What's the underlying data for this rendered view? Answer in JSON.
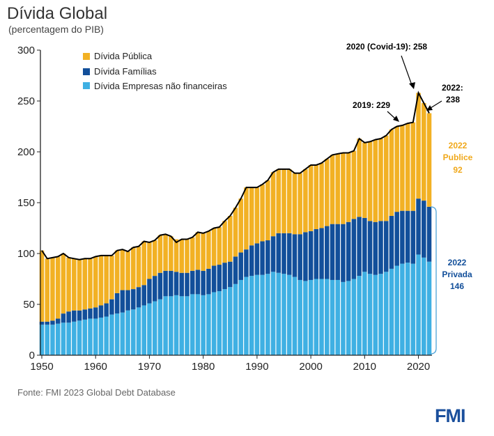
{
  "header": {
    "title": "Dívida Global",
    "subtitle": "(percentagem do PIB)"
  },
  "footer": {
    "source": "Fonte: FMI 2023 Global Debt Database",
    "logo_text": "FMI"
  },
  "colors": {
    "publica": "#f2b124",
    "familias": "#124f9a",
    "empresas": "#3fb0e3",
    "line": "#000000",
    "label_publica": "#f0a81a",
    "label_privada": "#124f9a"
  },
  "chart_data": {
    "type": "bar",
    "stacked": true,
    "x": [
      1950,
      1951,
      1952,
      1953,
      1954,
      1955,
      1956,
      1957,
      1958,
      1959,
      1960,
      1961,
      1962,
      1963,
      1964,
      1965,
      1966,
      1967,
      1968,
      1969,
      1970,
      1971,
      1972,
      1973,
      1974,
      1975,
      1976,
      1977,
      1978,
      1979,
      1980,
      1981,
      1982,
      1983,
      1984,
      1985,
      1986,
      1987,
      1988,
      1989,
      1990,
      1991,
      1992,
      1993,
      1994,
      1995,
      1996,
      1997,
      1998,
      1999,
      2000,
      2001,
      2002,
      2003,
      2004,
      2005,
      2006,
      2007,
      2008,
      2009,
      2010,
      2011,
      2012,
      2013,
      2014,
      2015,
      2016,
      2017,
      2018,
      2019,
      2020,
      2021,
      2022
    ],
    "series": [
      {
        "name": "Dívida Empresas não financeiras",
        "key": "empresas",
        "values": [
          30,
          30,
          30,
          31,
          32,
          32,
          33,
          34,
          35,
          36,
          36,
          37,
          38,
          40,
          41,
          42,
          44,
          45,
          47,
          49,
          51,
          53,
          55,
          58,
          58,
          59,
          58,
          58,
          60,
          60,
          59,
          60,
          62,
          63,
          65,
          67,
          70,
          74,
          77,
          78,
          79,
          79,
          80,
          82,
          81,
          80,
          79,
          77,
          74,
          73,
          74,
          75,
          75,
          75,
          74,
          74,
          72,
          73,
          75,
          78,
          82,
          80,
          79,
          80,
          82,
          85,
          88,
          90,
          91,
          90,
          99,
          96,
          92
        ]
      },
      {
        "name": "Dívida Famílias",
        "key": "familias",
        "values": [
          3,
          3,
          4,
          5,
          9,
          11,
          11,
          10,
          10,
          10,
          11,
          12,
          13,
          15,
          20,
          22,
          20,
          20,
          20,
          20,
          24,
          25,
          26,
          25,
          25,
          23,
          23,
          23,
          23,
          24,
          24,
          25,
          26,
          26,
          26,
          25,
          27,
          27,
          27,
          30,
          31,
          33,
          33,
          35,
          39,
          40,
          41,
          42,
          45,
          48,
          48,
          49,
          50,
          52,
          55,
          55,
          57,
          58,
          59,
          58,
          53,
          52,
          52,
          52,
          50,
          52,
          53,
          52,
          51,
          52,
          55,
          56,
          54
        ]
      },
      {
        "name": "Dívida Pública",
        "key": "publica",
        "values": [
          70,
          62,
          62,
          61,
          59,
          53,
          51,
          50,
          50,
          49,
          50,
          49,
          47,
          43,
          42,
          40,
          38,
          41,
          40,
          43,
          36,
          35,
          37,
          36,
          34,
          32,
          33,
          33,
          33,
          37,
          37,
          37,
          37,
          37,
          41,
          45,
          48,
          53,
          61,
          57,
          55,
          56,
          59,
          63,
          63,
          63,
          63,
          60,
          60,
          62,
          65,
          63,
          64,
          66,
          68,
          69,
          70,
          68,
          67,
          77,
          74,
          78,
          81,
          81,
          84,
          85,
          84,
          84,
          86,
          87,
          104,
          96,
          92
        ]
      }
    ],
    "top_line": [
      103,
      95,
      96,
      97,
      100,
      96,
      95,
      94,
      95,
      95,
      97,
      98,
      98,
      98,
      103,
      104,
      102,
      106,
      107,
      112,
      111,
      113,
      118,
      119,
      117,
      111,
      114,
      114,
      116,
      121,
      120,
      122,
      125,
      126,
      132,
      137,
      145,
      154,
      165,
      165,
      165,
      168,
      172,
      180,
      183,
      183,
      183,
      179,
      179,
      183,
      187,
      187,
      189,
      193,
      197,
      198,
      199,
      199,
      201,
      213,
      209,
      210,
      212,
      213,
      216,
      222,
      225,
      226,
      228,
      229,
      258,
      248,
      238
    ],
    "ylim": [
      0,
      300
    ],
    "yticks": [
      "0",
      "50",
      "100",
      "150",
      "200",
      "250",
      "300"
    ],
    "ytick_values": [
      0,
      50,
      100,
      150,
      200,
      250,
      300
    ],
    "xticks": [
      "1950",
      "1960",
      "1970",
      "1980",
      "1990",
      "2000",
      "2010",
      "2020"
    ],
    "xtick_values": [
      1950,
      1960,
      1970,
      1980,
      1990,
      2000,
      2010,
      2020
    ],
    "legend": {
      "position": "top-left",
      "items": [
        {
          "label": "Dívida Pública",
          "key": "publica"
        },
        {
          "label": "Dívida Famílias",
          "key": "familias"
        },
        {
          "label": "Dívida Empresas não financeiras",
          "key": "empresas"
        }
      ]
    },
    "annotations": {
      "covid": "2020 (Covid-19): 258",
      "y2019": "2019: 229",
      "y2022_line1": "2022:",
      "y2022_line2": "238",
      "publica_line1": "2022",
      "publica_line2": "Publice",
      "publica_line3": "92",
      "privada_line1": "2022",
      "privada_line2": "Privada",
      "privada_line3": "146"
    }
  }
}
